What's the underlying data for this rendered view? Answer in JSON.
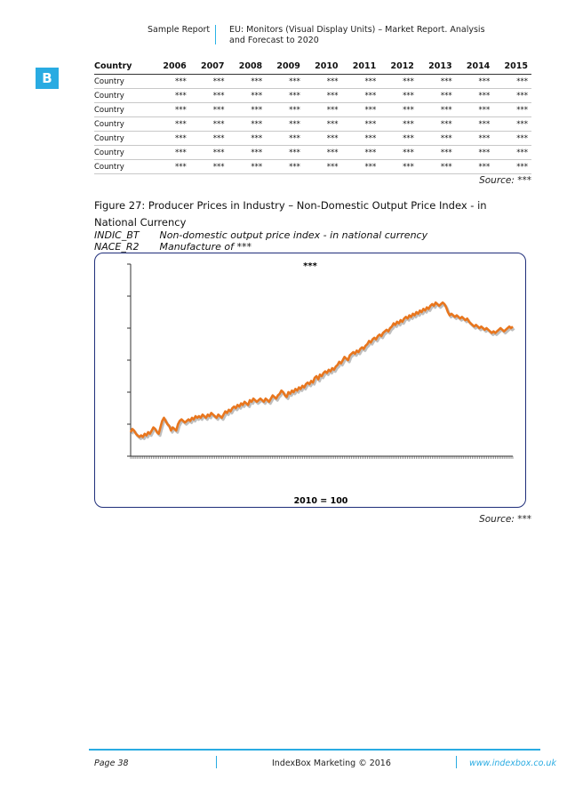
{
  "header": {
    "left": "Sample Report",
    "right": "EU: Monitors (Visual Display Units) – Market Report. Analysis and Forecast to 2020"
  },
  "logo": {
    "letter": "B"
  },
  "table": {
    "columns": [
      "Country",
      "2006",
      "2007",
      "2008",
      "2009",
      "2010",
      "2011",
      "2012",
      "2013",
      "2014",
      "2015"
    ],
    "rows": [
      [
        "Country",
        "***",
        "***",
        "***",
        "***",
        "***",
        "***",
        "***",
        "***",
        "***",
        "***"
      ],
      [
        "Country",
        "***",
        "***",
        "***",
        "***",
        "***",
        "***",
        "***",
        "***",
        "***",
        "***"
      ],
      [
        "Country",
        "***",
        "***",
        "***",
        "***",
        "***",
        "***",
        "***",
        "***",
        "***",
        "***"
      ],
      [
        "Country",
        "***",
        "***",
        "***",
        "***",
        "***",
        "***",
        "***",
        "***",
        "***",
        "***"
      ],
      [
        "Country",
        "***",
        "***",
        "***",
        "***",
        "***",
        "***",
        "***",
        "***",
        "***",
        "***"
      ],
      [
        "Country",
        "***",
        "***",
        "***",
        "***",
        "***",
        "***",
        "***",
        "***",
        "***",
        "***"
      ],
      [
        "Country",
        "***",
        "***",
        "***",
        "***",
        "***",
        "***",
        "***",
        "***",
        "***",
        "***"
      ]
    ],
    "source": "Source: ***"
  },
  "figure": {
    "title": "Figure 27: Producer Prices in Industry – Non-Domestic Output Price Index - in National Currency",
    "meta": [
      {
        "code": "INDIC_BT",
        "desc": "Non-domestic output price index - in national currency"
      },
      {
        "code": "NACE_R2",
        "desc": "Manufacture of ***"
      }
    ],
    "source": "Source: ***"
  },
  "chart_data": {
    "type": "line",
    "title": "***",
    "xlabel": "2010 = 100",
    "ylabel": "",
    "grid": false,
    "colors": {
      "line": "#e8761e",
      "shadow": "#8a8a8a"
    },
    "values": [
      55,
      57,
      56,
      54,
      53,
      52,
      53,
      52,
      54,
      53,
      55,
      54,
      56,
      58,
      57,
      55,
      54,
      58,
      62,
      64,
      62,
      60,
      59,
      56,
      58,
      57,
      56,
      60,
      62,
      63,
      62,
      61,
      62,
      63,
      62,
      64,
      63,
      65,
      64,
      65,
      64,
      66,
      65,
      64,
      66,
      65,
      67,
      66,
      65,
      64,
      66,
      65,
      64,
      66,
      68,
      67,
      69,
      68,
      70,
      71,
      70,
      72,
      71,
      73,
      72,
      74,
      73,
      72,
      75,
      74,
      76,
      75,
      74,
      75,
      76,
      75,
      74,
      76,
      75,
      74,
      76,
      78,
      77,
      76,
      78,
      79,
      81,
      80,
      78,
      77,
      80,
      79,
      81,
      80,
      82,
      81,
      83,
      82,
      84,
      83,
      85,
      86,
      85,
      87,
      86,
      89,
      90,
      88,
      91,
      90,
      92,
      93,
      92,
      94,
      93,
      95,
      94,
      96,
      97,
      99,
      98,
      100,
      102,
      101,
      100,
      103,
      104,
      105,
      104,
      106,
      105,
      107,
      108,
      107,
      109,
      110,
      112,
      111,
      113,
      114,
      113,
      115,
      116,
      115,
      117,
      118,
      119,
      118,
      120,
      121,
      123,
      122,
      124,
      123,
      125,
      124,
      126,
      127,
      126,
      128,
      127,
      129,
      128,
      130,
      129,
      131,
      130,
      132,
      131,
      133,
      132,
      134,
      135,
      134,
      136,
      135,
      134,
      135,
      136,
      135,
      133,
      130,
      128,
      129,
      128,
      127,
      128,
      127,
      126,
      127,
      126,
      125,
      126,
      124,
      123,
      122,
      121,
      122,
      121,
      120,
      121,
      120,
      119,
      120,
      119,
      118,
      117,
      118,
      117,
      118,
      119,
      120,
      119,
      118,
      119,
      120,
      121,
      120,
      121
    ]
  },
  "footer": {
    "page": "Page 38",
    "center": "IndexBox Marketing © 2016",
    "right": "www.indexbox.co.uk"
  }
}
